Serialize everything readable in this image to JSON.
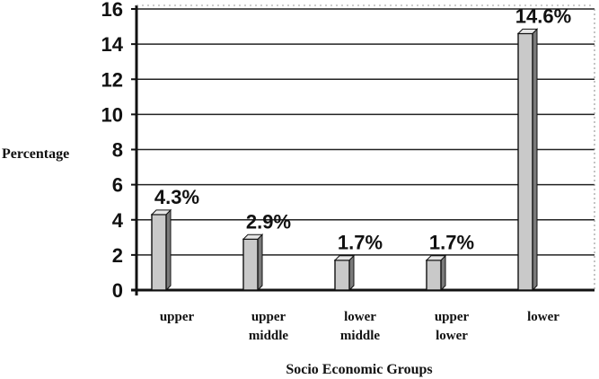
{
  "chart_data": {
    "type": "bar",
    "title": "",
    "xlabel": "Socio Economic Groups",
    "ylabel": "Percentage",
    "ylim": [
      0,
      16
    ],
    "yticks": [
      0,
      2,
      4,
      6,
      8,
      10,
      12,
      14,
      16
    ],
    "grid": true,
    "categories": [
      [
        "upper"
      ],
      [
        "upper",
        "middle"
      ],
      [
        "lower",
        "middle"
      ],
      [
        "upper",
        "lower"
      ],
      [
        "lower"
      ]
    ],
    "values": [
      4.3,
      2.9,
      1.7,
      1.7,
      14.6
    ],
    "data_labels": [
      "4.3%",
      "2.9%",
      "1.7%",
      "1.7%",
      "14.6%"
    ],
    "colors": {
      "bar": "#c9c9c9",
      "bar_side": "#7a7a7a",
      "bar_top": "#e6e6e6",
      "axis": "#111111"
    }
  }
}
